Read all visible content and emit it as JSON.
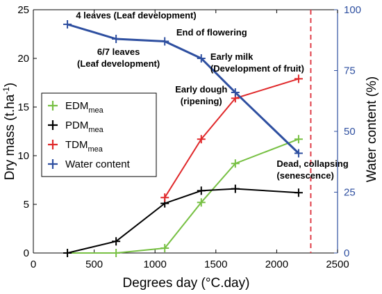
{
  "chart_data": {
    "type": "line",
    "xlabel": "Degrees day (°C.day)",
    "ylabel_left": "Dry mass (t.ha",
    "ylabel_left_sup": "-1",
    "ylabel_left_tail": ")",
    "ylabel_right": "Water content (%)",
    "xlim": [
      0,
      2500
    ],
    "ylim_left": [
      0,
      25
    ],
    "ylim_right": [
      0,
      100
    ],
    "x_ticks": [
      0,
      500,
      1000,
      1500,
      2000,
      2500
    ],
    "y_ticks_left": [
      0,
      5,
      10,
      15,
      20,
      25
    ],
    "y_ticks_right": [
      0,
      25,
      50,
      75,
      100
    ],
    "grid": false,
    "legend_position": "middle-left",
    "vline": {
      "x": 2280,
      "color": "#e0404a",
      "style": "dashed"
    },
    "colors": {
      "left_axis": "#000000",
      "right_axis": "#2e4fa0"
    },
    "series": [
      {
        "key": "edm",
        "label_main": "EDM",
        "label_sub": "mea",
        "color": "#77c043",
        "axis": "left",
        "x": [
          280,
          680,
          1080,
          1380,
          1660,
          2180
        ],
        "y": [
          0,
          0,
          0.5,
          5.2,
          9.2,
          11.7
        ]
      },
      {
        "key": "pdm",
        "label_main": "PDM",
        "label_sub": "mea",
        "color": "#000000",
        "axis": "left",
        "x": [
          280,
          680,
          1080,
          1380,
          1660,
          2180
        ],
        "y": [
          0,
          1.2,
          5.1,
          6.4,
          6.6,
          6.2
        ]
      },
      {
        "key": "tdm",
        "label_main": "TDM",
        "label_sub": "mea",
        "color": "#e0282a",
        "axis": "left",
        "x": [
          1080,
          1380,
          1660,
          2180
        ],
        "y": [
          5.7,
          11.7,
          15.9,
          17.9
        ]
      },
      {
        "key": "water",
        "label_main": "Water content",
        "label_sub": "",
        "color": "#2e4fa0",
        "axis": "right",
        "x": [
          280,
          680,
          1080,
          1380,
          1660,
          2180
        ],
        "y": [
          94,
          88,
          87,
          80,
          66,
          41
        ]
      }
    ],
    "annotations": [
      {
        "lines": [
          "4 leaves (Leaf development)"
        ],
        "x": 350,
        "y": 96.5,
        "anchor": "start"
      },
      {
        "lines": [
          "6/7 leaves",
          "(Leaf development)"
        ],
        "x": 700,
        "y": 81.5,
        "anchor": "middle"
      },
      {
        "lines": [
          "End of flowering"
        ],
        "x": 1175,
        "y": 89.5,
        "anchor": "start"
      },
      {
        "lines": [
          "Early milk",
          "(Development of fruit)"
        ],
        "x": 1455,
        "y": 79.5,
        "anchor": "start"
      },
      {
        "lines": [
          "Early dough",
          "(ripening)"
        ],
        "x": 1380,
        "y": 66,
        "anchor": "middle"
      },
      {
        "lines": [
          "Dead, collapsing",
          "(senescence)"
        ],
        "x": 2000,
        "y": 35.5,
        "anchor": "start"
      }
    ]
  }
}
